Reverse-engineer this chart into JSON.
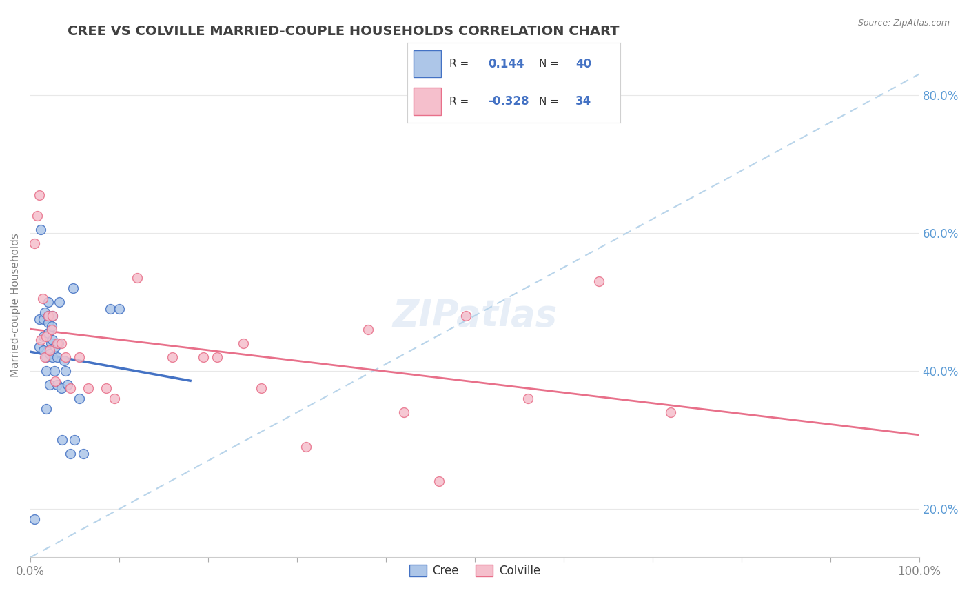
{
  "title": "CREE VS COLVILLE MARRIED-COUPLE HOUSEHOLDS CORRELATION CHART",
  "source": "Source: ZipAtlas.com",
  "ylabel": "Married-couple Households",
  "xlim": [
    0,
    1.0
  ],
  "ylim": [
    0.13,
    0.86
  ],
  "xtick_positions": [
    0.0,
    0.1,
    0.2,
    0.3,
    0.4,
    0.5,
    0.6,
    0.7,
    0.8,
    0.9,
    1.0
  ],
  "xtick_labels_shown": {
    "0.0": "0.0%",
    "1.0": "100.0%"
  },
  "ytick_positions": [
    0.2,
    0.4,
    0.6,
    0.8
  ],
  "ytick_labels": [
    "20.0%",
    "40.0%",
    "60.0%",
    "80.0%"
  ],
  "cree_R": 0.144,
  "cree_N": 40,
  "colville_R": -0.328,
  "colville_N": 34,
  "cree_color": "#adc6e8",
  "colville_color": "#f5bfcc",
  "cree_line_color": "#4472c4",
  "colville_line_color": "#e8708a",
  "diagonal_color": "#b8d4ea",
  "title_color": "#404040",
  "title_fontsize": 14,
  "ytick_color": "#5b9bd5",
  "xtick_color": "#808080",
  "cree_x": [
    0.005,
    0.01,
    0.01,
    0.012,
    0.015,
    0.015,
    0.015,
    0.016,
    0.018,
    0.018,
    0.018,
    0.02,
    0.02,
    0.02,
    0.02,
    0.022,
    0.022,
    0.023,
    0.024,
    0.025,
    0.025,
    0.025,
    0.027,
    0.028,
    0.03,
    0.03,
    0.032,
    0.033,
    0.035,
    0.036,
    0.038,
    0.04,
    0.042,
    0.045,
    0.048,
    0.05,
    0.055,
    0.06,
    0.09,
    0.1
  ],
  "cree_y": [
    0.185,
    0.435,
    0.475,
    0.605,
    0.43,
    0.45,
    0.475,
    0.485,
    0.345,
    0.4,
    0.42,
    0.455,
    0.47,
    0.48,
    0.5,
    0.38,
    0.425,
    0.44,
    0.465,
    0.42,
    0.445,
    0.48,
    0.4,
    0.435,
    0.38,
    0.42,
    0.44,
    0.5,
    0.375,
    0.3,
    0.415,
    0.4,
    0.38,
    0.28,
    0.52,
    0.3,
    0.36,
    0.28,
    0.49,
    0.49
  ],
  "colville_x": [
    0.005,
    0.008,
    0.01,
    0.012,
    0.014,
    0.016,
    0.018,
    0.02,
    0.022,
    0.024,
    0.025,
    0.028,
    0.03,
    0.035,
    0.04,
    0.045,
    0.055,
    0.065,
    0.085,
    0.095,
    0.12,
    0.16,
    0.195,
    0.21,
    0.24,
    0.26,
    0.31,
    0.38,
    0.42,
    0.46,
    0.49,
    0.56,
    0.64,
    0.72
  ],
  "colville_y": [
    0.585,
    0.625,
    0.655,
    0.445,
    0.505,
    0.42,
    0.45,
    0.48,
    0.43,
    0.46,
    0.48,
    0.385,
    0.44,
    0.44,
    0.42,
    0.375,
    0.42,
    0.375,
    0.375,
    0.36,
    0.535,
    0.42,
    0.42,
    0.42,
    0.44,
    0.375,
    0.29,
    0.46,
    0.34,
    0.24,
    0.48,
    0.36,
    0.53,
    0.34
  ],
  "background_color": "#ffffff",
  "grid_color": "#e8e8e8"
}
